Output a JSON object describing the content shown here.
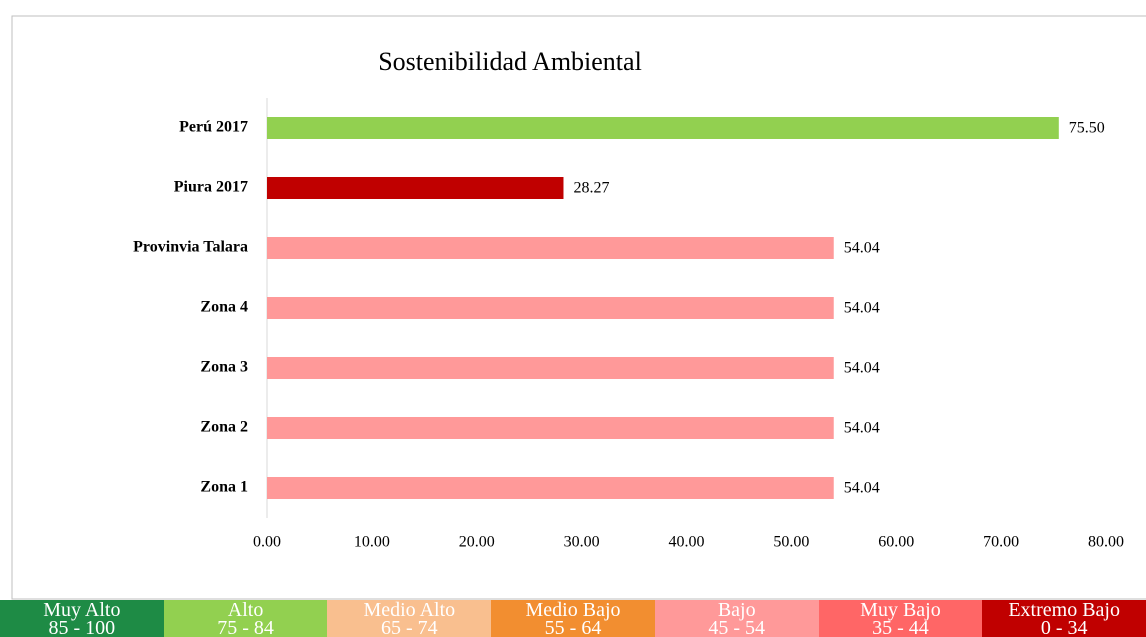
{
  "chart_data": {
    "type": "hbar",
    "title": "Sostenibilidad Ambiental",
    "categories": [
      "Perú 2017",
      "Piura 2017",
      "Provinvia Talara",
      "Zona 4",
      "Zona 3",
      "Zona 2",
      "Zona 1"
    ],
    "values": [
      75.5,
      28.27,
      54.04,
      54.04,
      54.04,
      54.04,
      54.04
    ],
    "value_labels": [
      "75.50",
      "28.27",
      "54.04",
      "54.04",
      "54.04",
      "54.04",
      "54.04"
    ],
    "colors": [
      "#92d050",
      "#c00000",
      "#ff9999",
      "#ff9999",
      "#ff9999",
      "#ff9999",
      "#ff9999"
    ],
    "xlim": [
      0,
      80
    ],
    "xticks": [
      {
        "value": 0,
        "label": "0.00"
      },
      {
        "value": 10,
        "label": "10.00"
      },
      {
        "value": 20,
        "label": "20.00"
      },
      {
        "value": 30,
        "label": "30.00"
      },
      {
        "value": 40,
        "label": "40.00"
      },
      {
        "value": 50,
        "label": "50.00"
      },
      {
        "value": 60,
        "label": "60.00"
      },
      {
        "value": 70,
        "label": "70.00"
      },
      {
        "value": 80,
        "label": "80.00"
      }
    ],
    "grid": false
  },
  "scale": [
    {
      "name": "Muy Alto",
      "range": "85 - 100",
      "color": "#1e8b45"
    },
    {
      "name": "Alto",
      "range": "75 - 84",
      "color": "#92d050"
    },
    {
      "name": "Medio Alto",
      "range": "65 - 74",
      "color": "#f9bf8f"
    },
    {
      "name": "Medio Bajo",
      "range": "55 - 64",
      "color": "#f28e30"
    },
    {
      "name": "Bajo",
      "range": "45 - 54",
      "color": "#ff9999"
    },
    {
      "name": "Muy Bajo",
      "range": "35 - 44",
      "color": "#ff6666"
    },
    {
      "name": "Extremo Bajo",
      "range": "0 - 34",
      "color": "#c00000"
    }
  ]
}
